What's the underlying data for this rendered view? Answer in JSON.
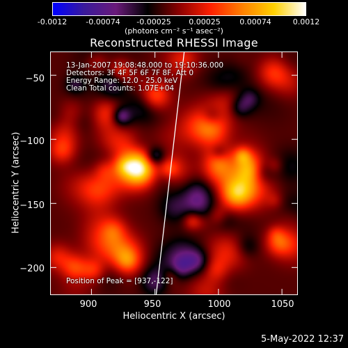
{
  "colorbar": {
    "ticks": [
      "-0.0012",
      "-0.00074",
      "-0.00025",
      "0.00025",
      "0.00074",
      "0.0012"
    ],
    "tick_values": [
      -0.0012,
      -0.00074,
      -0.00025,
      0.00025,
      0.00074,
      0.0012
    ],
    "units_label": "(photons cm⁻² s⁻¹ asec⁻²)",
    "colors": [
      "#0000ff",
      "#3a1a9a",
      "#6a1a7a",
      "#000000",
      "#8b0000",
      "#ff2000",
      "#ff8000",
      "#ffd000",
      "#ffffff"
    ]
  },
  "chart_data": {
    "type": "heatmap",
    "title": "Reconstructed RHESSI Image",
    "xlabel": "Heliocentric X (arcsec)",
    "ylabel": "Heliocentric Y (arcsec)",
    "xlim": [
      868,
      1062
    ],
    "ylim": [
      -221,
      -32
    ],
    "xticks": [
      900,
      950,
      1000,
      1050
    ],
    "yticks": [
      -50,
      -100,
      -150,
      -200
    ],
    "xtick_labels": [
      "900",
      "950",
      "1000",
      "1050"
    ],
    "ytick_labels": [
      "−50",
      "−100",
      "−150",
      "−200"
    ],
    "value_range": [
      -0.0012,
      0.0012
    ],
    "limb_line": [
      [
        951,
        -221
      ],
      [
        973,
        -32
      ]
    ],
    "peak": [
      937,
      -122
    ],
    "annotations": [
      "13-Jan-2007 19:08:48.000 to 19:10:36.000",
      "Detectors: 3F 4F 5F 6F 7F 8F, Att 0",
      "Energy Range: 12.0 - 25.0 keV",
      "Clean     Total counts: 1.07E+04",
      "Position of Peak = [937,-122]"
    ]
  },
  "timestamp": "5-May-2022 12:37"
}
